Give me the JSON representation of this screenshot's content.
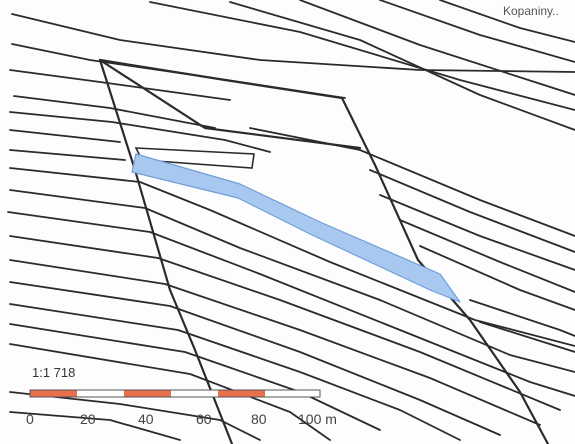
{
  "map": {
    "place_label": "Kopaniny..",
    "scale": {
      "ratio": "1:1 718",
      "ticks": [
        "0",
        "20",
        "40",
        "60",
        "80",
        "100 m"
      ],
      "segment_colors": [
        "#e8704a",
        "#ffffff"
      ]
    },
    "colors": {
      "parcel_lines": "#2b2b2b",
      "highlight_fill": "#a9c8ef",
      "highlight_stroke": "#6f9fd8"
    }
  }
}
